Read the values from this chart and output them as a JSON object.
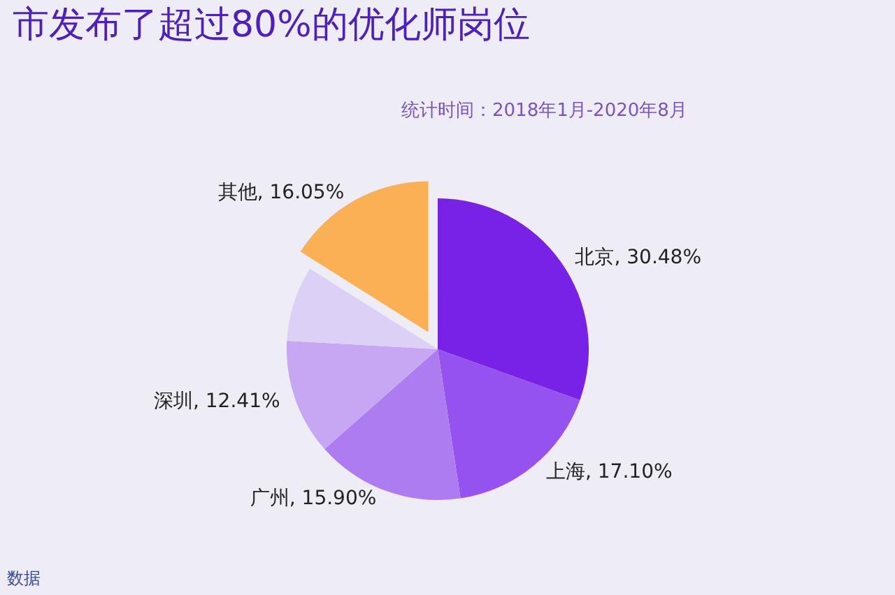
{
  "chart_data": {
    "type": "pie",
    "title": "市发布了超过80%的优化师岗位",
    "subtitle": "统计时间：2018年1月-2020年8月",
    "categories": [
      "北京",
      "上海",
      "广州",
      "深圳",
      null,
      "其他"
    ],
    "values": [
      30.48,
      17.1,
      15.9,
      12.41,
      8.06,
      16.05
    ],
    "value_labels": [
      "30.48%",
      "17.10%",
      "15.90%",
      "12.41%",
      null,
      "16.05%"
    ],
    "colors": [
      "#7722e6",
      "#9552ee",
      "#ad7cf0",
      "#c7a6f4",
      "#ddd0f6",
      "#fbb054"
    ],
    "annotations": [
      "数据"
    ],
    "legend": false
  }
}
